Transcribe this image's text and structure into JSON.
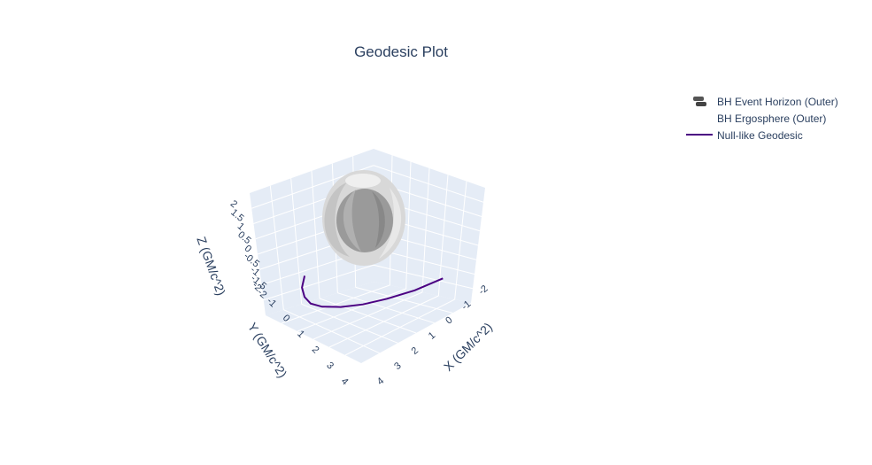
{
  "chart_data": {
    "type": "scatter3d",
    "title": "Geodesic Plot",
    "xlabel": "X (GM/c^2)",
    "ylabel": "Y (GM/c^2)",
    "zlabel": "Z (GM/c^2)",
    "x_ticks": [
      "-2",
      "-1",
      "0",
      "1",
      "2",
      "3",
      "4"
    ],
    "y_ticks": [
      "-2",
      "-1",
      "0",
      "1",
      "2",
      "3",
      "4"
    ],
    "z_ticks": [
      "-2",
      "-1.5",
      "-1",
      "-0.5",
      "0",
      "0.5",
      "1",
      "1.5",
      "2"
    ],
    "xlim": [
      -2,
      4
    ],
    "ylim": [
      -2,
      4
    ],
    "zlim": [
      -2,
      2
    ],
    "grid": true,
    "legend_position": "top-right",
    "background_color": "#e5ecf6",
    "series": [
      {
        "name": "BH Event Horizon (Outer)",
        "kind": "surface",
        "color": "#9a9a9a"
      },
      {
        "name": "BH Ergosphere (Outer)",
        "kind": "surface",
        "color": "#d8d8d8"
      },
      {
        "name": "Null-like Geodesic",
        "kind": "line",
        "color": "#4b0082",
        "x": [
          3.6,
          3.2,
          2.6,
          2.0,
          1.3,
          0.6,
          0.0,
          -0.6,
          -1.2,
          -1.7
        ],
        "y": [
          -0.8,
          0.4,
          1.4,
          2.2,
          2.8,
          3.2,
          3.3,
          3.1,
          2.7,
          2.1
        ],
        "z": [
          -1.1,
          -1.3,
          -1.45,
          -1.55,
          -1.6,
          -1.6,
          -1.55,
          -1.45,
          -1.3,
          -1.1
        ]
      }
    ]
  }
}
